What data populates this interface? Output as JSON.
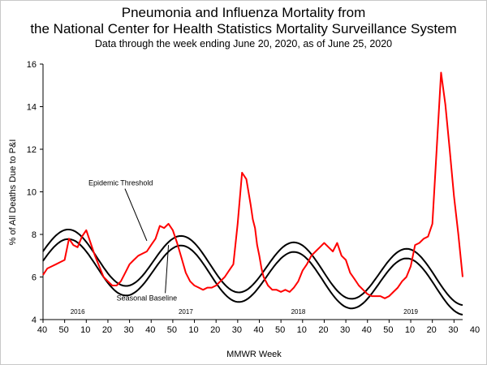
{
  "chart_data": {
    "type": "line",
    "title": "Pneumonia and Influenza Mortality from",
    "title_line2": "the National Center for Health Statistics Mortality Surveillance System",
    "subtitle": "Data through the week ending June 20, 2020, as of June 25, 2020",
    "xlabel": "MMWR Week",
    "ylabel": "% of All Deaths Due to P&I",
    "ylim": [
      4,
      16
    ],
    "yticks": [
      "4",
      "6",
      "8",
      "10",
      "12",
      "14",
      "16"
    ],
    "xlim": [
      0,
      194
    ],
    "xtick_labels": [
      "40",
      "50",
      "10",
      "20",
      "30",
      "40",
      "50",
      "10",
      "20",
      "30",
      "40",
      "50",
      "10",
      "20",
      "30",
      "40",
      "50",
      "10",
      "20",
      "30",
      "40",
      "50",
      "10",
      "20"
    ],
    "year_labels": [
      {
        "label": "2016",
        "x": 16
      },
      {
        "label": "2017",
        "x": 66
      },
      {
        "label": "2018",
        "x": 118
      },
      {
        "label": "2019",
        "x": 170
      }
    ],
    "annotations": [
      {
        "text": "Epidemic Threshold",
        "label_x": 21,
        "label_y": 10.3,
        "arrow_to_x": 48,
        "arrow_to_y": 7.7
      },
      {
        "text": "Seasonal Baseline",
        "label_x": 34,
        "label_y": 4.9,
        "arrow_to_x": 58,
        "arrow_to_y": 7.5
      }
    ],
    "series": [
      {
        "name": "% of All Deaths Due to P&I",
        "color": "#ff0000",
        "x": [
          0,
          2,
          4,
          6,
          8,
          10,
          12,
          14,
          16,
          18,
          20,
          22,
          24,
          26,
          28,
          30,
          32,
          34,
          36,
          38,
          40,
          42,
          44,
          46,
          48,
          50,
          52,
          54,
          56,
          58,
          60,
          62,
          64,
          66,
          68,
          70,
          72,
          74,
          76,
          78,
          80,
          82,
          84,
          86,
          88,
          90,
          92,
          94,
          96,
          97,
          98,
          99,
          100,
          101,
          102,
          104,
          106,
          108,
          110,
          112,
          114,
          116,
          118,
          120,
          122,
          124,
          126,
          128,
          130,
          132,
          134,
          136,
          138,
          140,
          142,
          144,
          146,
          148,
          150,
          152,
          154,
          156,
          158,
          160,
          162,
          164,
          166,
          168,
          170,
          172,
          174,
          176,
          178,
          180,
          182,
          184,
          186,
          188,
          190,
          192,
          194
        ],
        "values": [
          6.1,
          6.4,
          6.5,
          6.6,
          6.7,
          6.8,
          7.8,
          7.5,
          7.4,
          7.9,
          8.2,
          7.6,
          7.0,
          6.5,
          6.0,
          5.8,
          5.6,
          5.6,
          5.8,
          6.2,
          6.6,
          6.8,
          7.0,
          7.1,
          7.2,
          7.5,
          7.8,
          8.4,
          8.3,
          8.5,
          8.2,
          7.6,
          6.9,
          6.2,
          5.8,
          5.6,
          5.5,
          5.4,
          5.5,
          5.5,
          5.6,
          5.8,
          6.0,
          6.3,
          6.6,
          8.5,
          10.9,
          10.6,
          9.4,
          8.7,
          8.3,
          7.5,
          7.0,
          6.4,
          6.0,
          5.6,
          5.4,
          5.4,
          5.3,
          5.4,
          5.3,
          5.5,
          5.8,
          6.3,
          6.6,
          7.0,
          7.2,
          7.4,
          7.6,
          7.4,
          7.2,
          7.6,
          7.0,
          6.8,
          6.2,
          5.9,
          5.6,
          5.4,
          5.2,
          5.1,
          5.1,
          5.1,
          5.0,
          5.1,
          5.3,
          5.5,
          5.8,
          6.0,
          6.5,
          7.5,
          7.6,
          7.8,
          7.9,
          8.5,
          12.0,
          15.6,
          14.1,
          12.0,
          9.8,
          8.0,
          6.0
        ]
      },
      {
        "name": "Epidemic Threshold",
        "color": "#000000",
        "generated": "smooth seasonal curve"
      },
      {
        "name": "Seasonal Baseline",
        "color": "#000000",
        "generated": "smooth seasonal curve"
      }
    ]
  }
}
